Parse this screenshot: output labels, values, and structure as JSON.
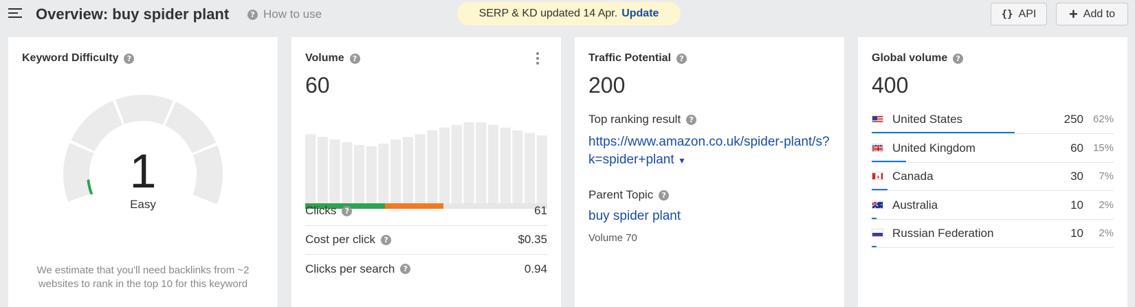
{
  "header": {
    "title": "Overview: buy spider plant",
    "how_to_use": "How to use",
    "banner_text": "SERP & KD updated 14 Apr.",
    "banner_link": "Update",
    "api_label": "API",
    "add_label": "Add to"
  },
  "kd": {
    "title": "Keyword Difficulty",
    "value": "1",
    "label": "Easy",
    "level": 0.01,
    "note": "We estimate that you'll need backlinks from ~2 websites to rank in the top 10 for this keyword"
  },
  "volume": {
    "title": "Volume",
    "value": "60",
    "trend": [
      55,
      53,
      51,
      49,
      47,
      46,
      48,
      51,
      53,
      55,
      58,
      60,
      62,
      64,
      64,
      62,
      60,
      58,
      56,
      54
    ],
    "clicks_split": {
      "green": 0.33,
      "orange": 0.24,
      "green_color": "#2ea44f",
      "orange_color": "#f47920"
    },
    "metrics": [
      {
        "label": "Clicks",
        "value": "61"
      },
      {
        "label": "Cost per click",
        "value": "$0.35"
      },
      {
        "label": "Clicks per search",
        "value": "0.94"
      }
    ]
  },
  "traffic": {
    "title": "Traffic Potential",
    "value": "200",
    "top_ranking_label": "Top ranking result",
    "top_ranking_url": "https://www.amazon.co.uk/spider-plant/s?k=spider+plant",
    "parent_topic_label": "Parent Topic",
    "parent_topic": "buy spider plant",
    "parent_volume": "Volume 70"
  },
  "global": {
    "title": "Global volume",
    "value": "400",
    "countries": [
      {
        "name": "United States",
        "value": "250",
        "pct": "62%",
        "share": 0.62,
        "flag": "us-flag"
      },
      {
        "name": "United Kingdom",
        "value": "60",
        "pct": "15%",
        "share": 0.15,
        "flag": "uk-flag"
      },
      {
        "name": "Canada",
        "value": "30",
        "pct": "7%",
        "share": 0.07,
        "flag": "ca-flag"
      },
      {
        "name": "Australia",
        "value": "10",
        "pct": "2%",
        "share": 0.02,
        "flag": "au-flag"
      },
      {
        "name": "Russian Federation",
        "value": "10",
        "pct": "2%",
        "share": 0.02,
        "flag": "ru-flag"
      }
    ]
  },
  "colors": {
    "accent": "#1a4da6",
    "bar": "#1a74d6",
    "banner": "#fdf6cf",
    "gauge_track": "#ebebeb"
  }
}
